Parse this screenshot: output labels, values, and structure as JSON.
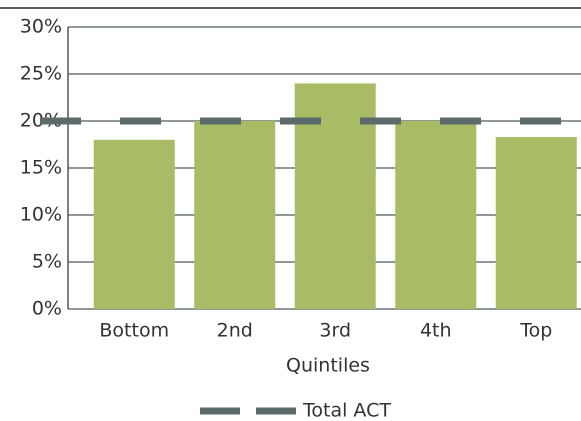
{
  "chart_data": {
    "type": "bar",
    "categories": [
      "Bottom",
      "2nd",
      "3rd",
      "4th",
      "Top"
    ],
    "values": [
      18,
      20,
      24,
      20,
      18.3
    ],
    "color": "#a8bc66",
    "x_label": "Quintiles",
    "ylim": [
      0,
      30
    ],
    "yticks": [
      {
        "value": 0,
        "label": "0%"
      },
      {
        "value": 5,
        "label": "5%"
      },
      {
        "value": 10,
        "label": "10%"
      },
      {
        "value": 15,
        "label": "15%"
      },
      {
        "value": 20,
        "label": "20%"
      },
      {
        "value": 25,
        "label": "25%"
      },
      {
        "value": 30,
        "label": "30%"
      }
    ],
    "grid": true,
    "reference": {
      "name": "Total ACT",
      "value": 20,
      "color": "#5b6b6b"
    },
    "legend": "bottom"
  }
}
